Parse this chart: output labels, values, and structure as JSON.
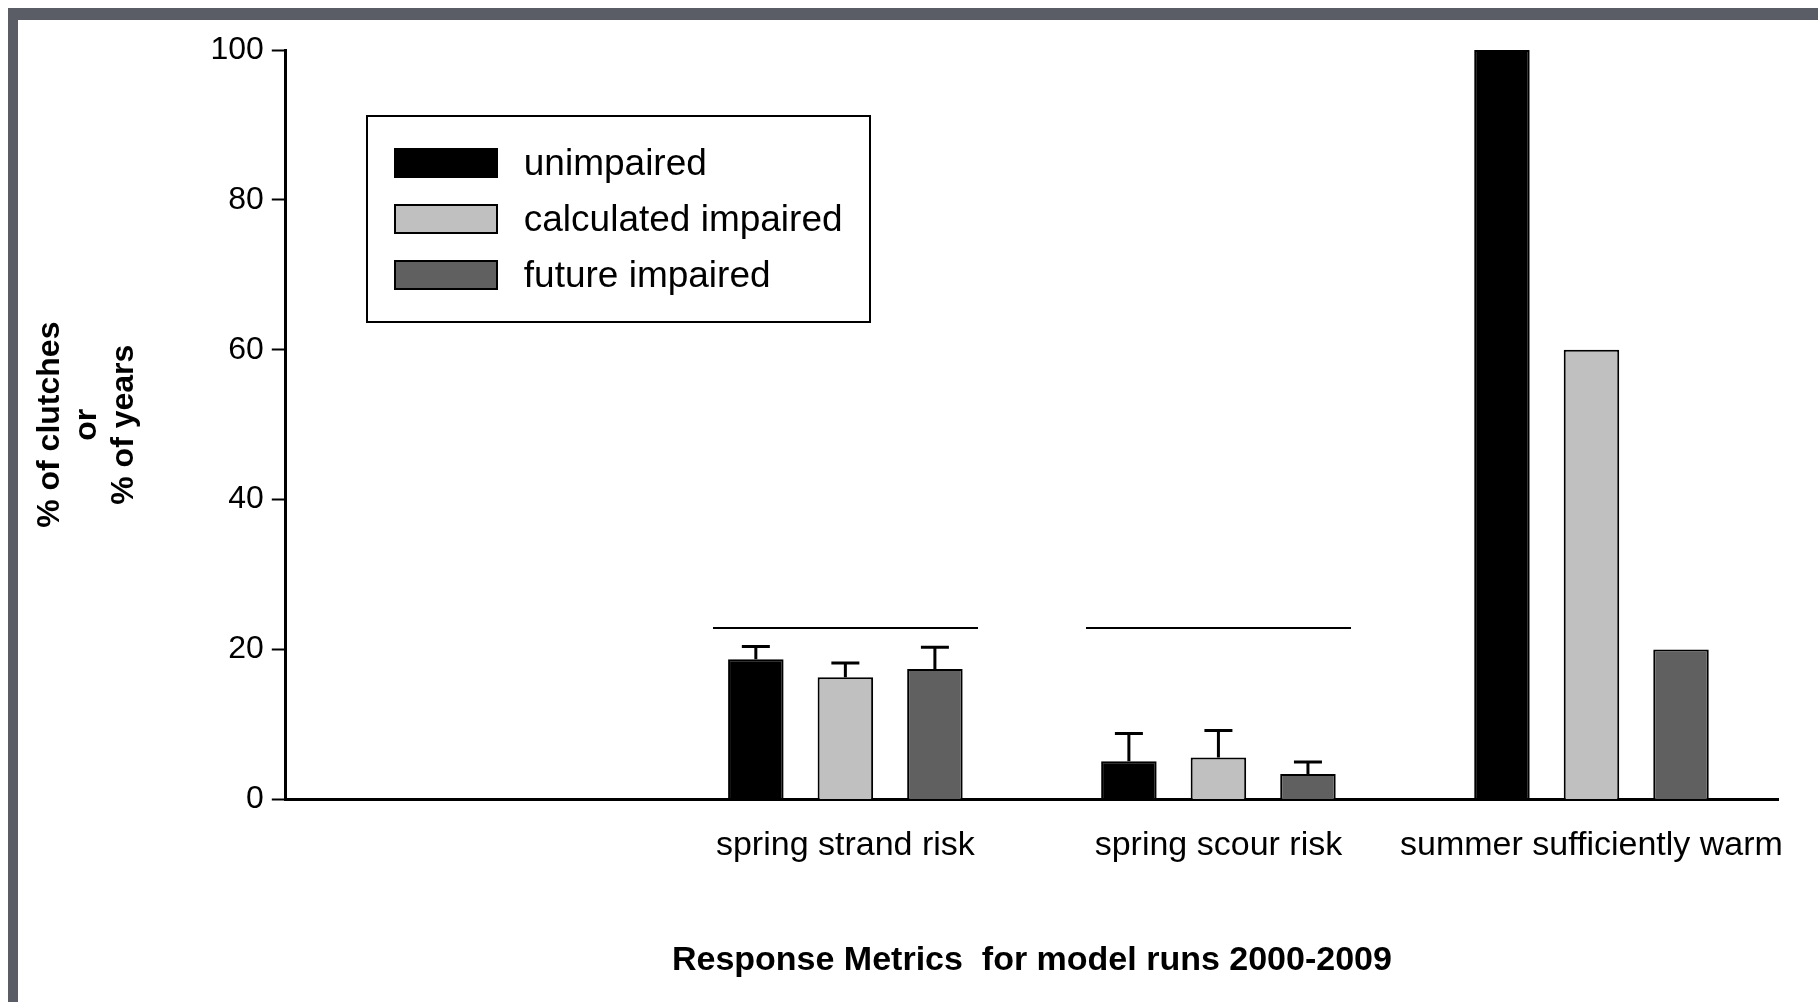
{
  "chart_data": {
    "type": "bar",
    "xlabel": "Response Metrics  for model runs 2000-2009",
    "ylabel": "% of clutches\nor\n% of years",
    "categories": [
      null,
      "spring strand risk",
      "spring scour risk",
      "summer sufficiently warm"
    ],
    "series": [
      {
        "name": "unimpaired",
        "color": "#000000",
        "values": [
          null,
          18.7,
          5.1,
          100
        ],
        "errors": [
          null,
          [
            18.7,
            20.4
          ],
          [
            5.1,
            8.8
          ],
          null
        ]
      },
      {
        "name": "calculated impaired",
        "color": "#c0c0c0",
        "values": [
          null,
          16.3,
          5.6,
          60
        ],
        "errors": [
          null,
          [
            16.3,
            18.2
          ],
          [
            5.6,
            9.2
          ],
          null
        ]
      },
      {
        "name": "future impaired",
        "color": "#606060",
        "values": [
          null,
          17.4,
          3.4,
          20
        ],
        "errors": [
          null,
          [
            17.4,
            20.3
          ],
          [
            3.4,
            5.0
          ],
          null
        ]
      }
    ],
    "ylim": [
      0,
      100
    ],
    "yticks": [
      0,
      20,
      40,
      60,
      80,
      100
    ],
    "grid": false,
    "legend": "top left"
  }
}
